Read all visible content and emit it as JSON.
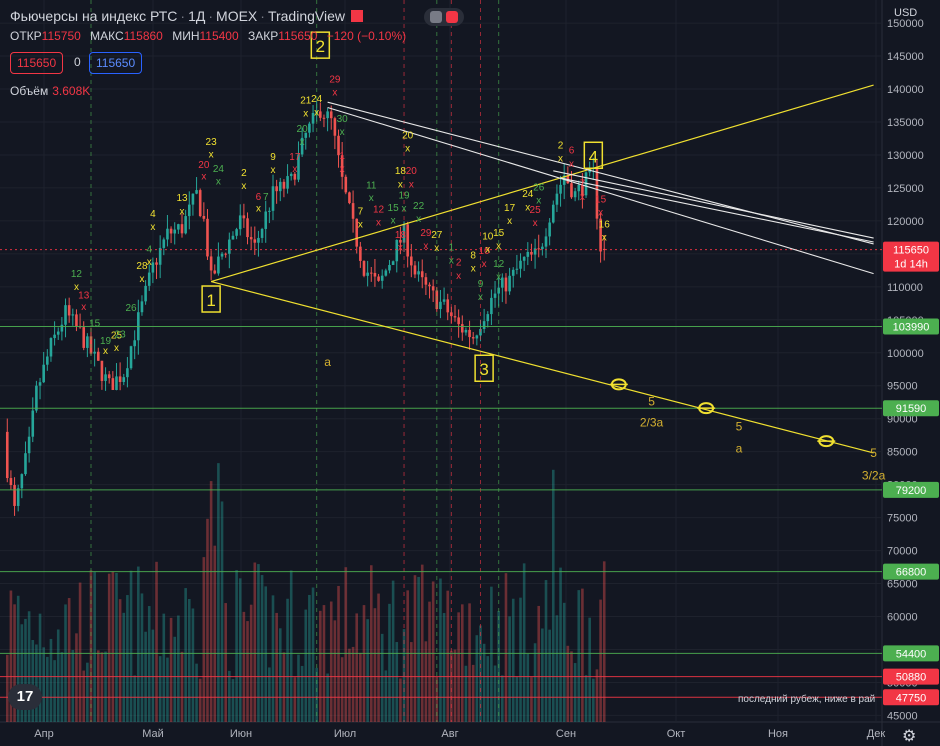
{
  "header": {
    "title": "Фьючерсы на индекс РТС",
    "interval": "1Д",
    "exchange": "MOEX",
    "brand": "TradingView"
  },
  "ohlc": {
    "open_label": "ОТКР",
    "open": "115750",
    "high_label": "МАКС",
    "high": "115860",
    "low_label": "МИН",
    "low": "115400",
    "close_label": "ЗАКР",
    "close": "115650",
    "change": "−120 (−0.10%)"
  },
  "trade": {
    "sell_price": "115650",
    "quantity": "0",
    "buy_price": "115650"
  },
  "volume": {
    "label": "Объём",
    "value": "3.608K"
  },
  "currency": "USD",
  "note": "последний рубеж, ниже в рай",
  "colors": {
    "bg": "#131722",
    "up": "#26a69a",
    "down": "#ef5350",
    "wave": "#f0e030",
    "green_level": "#4caf50",
    "red_level": "#f23645"
  },
  "chart_data": {
    "type": "candlestick",
    "y_axis": {
      "ticks": [
        150000,
        145000,
        140000,
        135000,
        130000,
        125000,
        120000,
        115000,
        110000,
        105000,
        100000,
        95000,
        90000,
        85000,
        80000,
        75000,
        70000,
        65000,
        60000,
        55000,
        50000,
        45000
      ],
      "range": [
        44000,
        153500
      ]
    },
    "x_axis": {
      "labels": [
        "Апр",
        "Май",
        "Июн",
        "Июл",
        "Авг",
        "Сен",
        "Окт",
        "Ноя",
        "Дек"
      ]
    },
    "price_labels": [
      {
        "value": 115650,
        "text": "115650",
        "sub": "1d 14h",
        "color": "#f23645"
      },
      {
        "value": 103990,
        "text": "103990",
        "color": "#4caf50"
      },
      {
        "value": 91590,
        "text": "91590",
        "color": "#4caf50"
      },
      {
        "value": 79200,
        "text": "79200",
        "color": "#4caf50"
      },
      {
        "value": 66800,
        "text": "66800",
        "color": "#4caf50"
      },
      {
        "value": 54400,
        "text": "54400",
        "color": "#4caf50"
      },
      {
        "value": 50880,
        "text": "50880",
        "color": "#f23645"
      },
      {
        "value": 47750,
        "text": "47750",
        "color": "#f23645"
      }
    ],
    "wave_labels": [
      {
        "text": "1",
        "day": 58,
        "price": 108000
      },
      {
        "text": "2",
        "day": 88,
        "price": 146500
      },
      {
        "text": "3",
        "day": 133,
        "price": 97500
      },
      {
        "text": "4",
        "day": 163,
        "price": 129800
      }
    ],
    "annotations": [
      {
        "text": "a",
        "day": 90,
        "price": 98000
      },
      {
        "text": "5",
        "day": 179,
        "price": 92000
      },
      {
        "text": "2/3a",
        "day": 179,
        "price": 88800
      },
      {
        "text": "5",
        "day": 203,
        "price": 88200
      },
      {
        "text": "a",
        "day": 203,
        "price": 84900
      },
      {
        "text": "5",
        "day": 240,
        "price": 84200
      },
      {
        "text": "3/2a",
        "day": 240,
        "price": 80800
      }
    ],
    "td_counts": [
      {
        "t": "12",
        "d": 21,
        "p": 111500,
        "c": "g"
      },
      {
        "t": "x",
        "d": 21,
        "p": 109500,
        "c": "y"
      },
      {
        "t": "13",
        "d": 23,
        "p": 108200,
        "c": "r"
      },
      {
        "t": "x",
        "d": 23,
        "p": 106500,
        "c": "r"
      },
      {
        "t": "15",
        "d": 26,
        "p": 104000,
        "c": "g"
      },
      {
        "t": "19",
        "d": 29,
        "p": 101300,
        "c": "g"
      },
      {
        "t": "x",
        "d": 29,
        "p": 99800,
        "c": "y"
      },
      {
        "t": "25",
        "d": 32,
        "p": 102200,
        "c": "y"
      },
      {
        "t": "23",
        "d": 33,
        "p": 102300,
        "c": "g"
      },
      {
        "t": "x",
        "d": 32,
        "p": 100300,
        "c": "y"
      },
      {
        "t": "26",
        "d": 36,
        "p": 106300,
        "c": "g"
      },
      {
        "t": "28",
        "d": 39,
        "p": 112700,
        "c": "y"
      },
      {
        "t": "x",
        "d": 39,
        "p": 110700,
        "c": "y"
      },
      {
        "t": "4",
        "d": 41,
        "p": 115200,
        "c": "g"
      },
      {
        "t": "x",
        "d": 41,
        "p": 113300,
        "c": "y"
      },
      {
        "t": "4",
        "d": 42,
        "p": 120600,
        "c": "y"
      },
      {
        "t": "x",
        "d": 42,
        "p": 118600,
        "c": "y"
      },
      {
        "t": "13",
        "d": 50,
        "p": 123000,
        "c": "y"
      },
      {
        "t": "x",
        "d": 50,
        "p": 121000,
        "c": "y"
      },
      {
        "t": "23",
        "d": 58,
        "p": 131500,
        "c": "y"
      },
      {
        "t": "x",
        "d": 58,
        "p": 129600,
        "c": "y"
      },
      {
        "t": "20",
        "d": 56,
        "p": 128000,
        "c": "r"
      },
      {
        "t": "x",
        "d": 56,
        "p": 126300,
        "c": "r"
      },
      {
        "t": "24",
        "d": 60,
        "p": 127400,
        "c": "g"
      },
      {
        "t": "x",
        "d": 60,
        "p": 125500,
        "c": "g"
      },
      {
        "t": "2",
        "d": 67,
        "p": 126800,
        "c": "y"
      },
      {
        "t": "x",
        "d": 67,
        "p": 124800,
        "c": "y"
      },
      {
        "t": "6",
        "d": 71,
        "p": 123200,
        "c": "r"
      },
      {
        "t": "7",
        "d": 73,
        "p": 123200,
        "c": "g"
      },
      {
        "t": "x",
        "d": 71,
        "p": 121400,
        "c": "y"
      },
      {
        "t": "9",
        "d": 75,
        "p": 129200,
        "c": "y"
      },
      {
        "t": "x",
        "d": 75,
        "p": 127300,
        "c": "y"
      },
      {
        "t": "17",
        "d": 81,
        "p": 129200,
        "c": "r"
      },
      {
        "t": "x",
        "d": 81,
        "p": 127400,
        "c": "r"
      },
      {
        "t": "20",
        "d": 83,
        "p": 133500,
        "c": "g"
      },
      {
        "t": "x",
        "d": 83,
        "p": 131500,
        "c": "g"
      },
      {
        "t": "21",
        "d": 84,
        "p": 137800,
        "c": "y"
      },
      {
        "t": "x",
        "d": 84,
        "p": 135800,
        "c": "y"
      },
      {
        "t": "24",
        "d": 87,
        "p": 138000,
        "c": "y"
      },
      {
        "t": "x",
        "d": 87,
        "p": 136000,
        "c": "y"
      },
      {
        "t": "29",
        "d": 92,
        "p": 141000,
        "c": "r"
      },
      {
        "t": "x",
        "d": 92,
        "p": 139000,
        "c": "r"
      },
      {
        "t": "30",
        "d": 94,
        "p": 135000,
        "c": "g"
      },
      {
        "t": "x",
        "d": 94,
        "p": 133000,
        "c": "g"
      },
      {
        "t": "1",
        "d": 94,
        "p": 129400,
        "c": "r"
      },
      {
        "t": "x",
        "d": 94,
        "p": 127400,
        "c": "r"
      },
      {
        "t": "7",
        "d": 99,
        "p": 121000,
        "c": "y"
      },
      {
        "t": "x",
        "d": 99,
        "p": 119000,
        "c": "y"
      },
      {
        "t": "11",
        "d": 102,
        "p": 124900,
        "c": "g"
      },
      {
        "t": "x",
        "d": 102,
        "p": 123000,
        "c": "g"
      },
      {
        "t": "12",
        "d": 104,
        "p": 121300,
        "c": "r"
      },
      {
        "t": "x",
        "d": 104,
        "p": 119300,
        "c": "r"
      },
      {
        "t": "15",
        "d": 108,
        "p": 121500,
        "c": "g"
      },
      {
        "t": "x",
        "d": 108,
        "p": 119600,
        "c": "g"
      },
      {
        "t": "19",
        "d": 111,
        "p": 123400,
        "c": "g"
      },
      {
        "t": "x",
        "d": 111,
        "p": 121400,
        "c": "g"
      },
      {
        "t": "18",
        "d": 110,
        "p": 117400,
        "c": "r"
      },
      {
        "t": "x",
        "d": 110,
        "p": 115500,
        "c": "r"
      },
      {
        "t": "18",
        "d": 110,
        "p": 127100,
        "c": "y"
      },
      {
        "t": "x",
        "d": 110,
        "p": 125100,
        "c": "y"
      },
      {
        "t": "20",
        "d": 112,
        "p": 132500,
        "c": "y"
      },
      {
        "t": "x",
        "d": 112,
        "p": 130500,
        "c": "y"
      },
      {
        "t": "20",
        "d": 113,
        "p": 127100,
        "c": "r"
      },
      {
        "t": "x",
        "d": 113,
        "p": 125100,
        "c": "r"
      },
      {
        "t": "22",
        "d": 115,
        "p": 121800,
        "c": "g"
      },
      {
        "t": "x",
        "d": 115,
        "p": 119800,
        "c": "g"
      },
      {
        "t": "29",
        "d": 117,
        "p": 117700,
        "c": "r"
      },
      {
        "t": "x",
        "d": 117,
        "p": 115700,
        "c": "r"
      },
      {
        "t": "27",
        "d": 120,
        "p": 117400,
        "c": "y"
      },
      {
        "t": "x",
        "d": 120,
        "p": 115400,
        "c": "y"
      },
      {
        "t": "1",
        "d": 124,
        "p": 115500,
        "c": "g"
      },
      {
        "t": "x",
        "d": 124,
        "p": 113500,
        "c": "g"
      },
      {
        "t": "2",
        "d": 126,
        "p": 113200,
        "c": "r"
      },
      {
        "t": "x",
        "d": 126,
        "p": 111200,
        "c": "r"
      },
      {
        "t": "8",
        "d": 130,
        "p": 114300,
        "c": "y"
      },
      {
        "t": "x",
        "d": 130,
        "p": 112300,
        "c": "y"
      },
      {
        "t": "9",
        "d": 132,
        "p": 110000,
        "c": "g"
      },
      {
        "t": "x",
        "d": 132,
        "p": 108000,
        "c": "g"
      },
      {
        "t": "10",
        "d": 133,
        "p": 115000,
        "c": "r"
      },
      {
        "t": "x",
        "d": 133,
        "p": 113000,
        "c": "r"
      },
      {
        "t": "10",
        "d": 134,
        "p": 117200,
        "c": "y"
      },
      {
        "t": "x",
        "d": 134,
        "p": 115200,
        "c": "y"
      },
      {
        "t": "12",
        "d": 137,
        "p": 113000,
        "c": "g"
      },
      {
        "t": "x",
        "d": 137,
        "p": 111000,
        "c": "g"
      },
      {
        "t": "15",
        "d": 137,
        "p": 117700,
        "c": "y"
      },
      {
        "t": "x",
        "d": 137,
        "p": 115700,
        "c": "y"
      },
      {
        "t": "17",
        "d": 140,
        "p": 121500,
        "c": "y"
      },
      {
        "t": "x",
        "d": 140,
        "p": 119500,
        "c": "y"
      },
      {
        "t": "24",
        "d": 145,
        "p": 123600,
        "c": "y"
      },
      {
        "t": "x",
        "d": 145,
        "p": 121600,
        "c": "y"
      },
      {
        "t": "25",
        "d": 147,
        "p": 121200,
        "c": "r"
      },
      {
        "t": "x",
        "d": 147,
        "p": 119200,
        "c": "r"
      },
      {
        "t": "26",
        "d": 148,
        "p": 124600,
        "c": "g"
      },
      {
        "t": "x",
        "d": 148,
        "p": 122600,
        "c": "g"
      },
      {
        "t": "2",
        "d": 154,
        "p": 131000,
        "c": "y"
      },
      {
        "t": "x",
        "d": 154,
        "p": 129000,
        "c": "y"
      },
      {
        "t": "6",
        "d": 157,
        "p": 130200,
        "c": "r"
      },
      {
        "t": "x",
        "d": 157,
        "p": 128200,
        "c": "r"
      },
      {
        "t": "7",
        "d": 160,
        "p": 125200,
        "c": "r"
      },
      {
        "t": "x",
        "d": 160,
        "p": 123200,
        "c": "r"
      },
      {
        "t": "15",
        "d": 165,
        "p": 122800,
        "c": "r"
      },
      {
        "t": "x",
        "d": 165,
        "p": 120800,
        "c": "r"
      },
      {
        "t": "16",
        "d": 166,
        "p": 119000,
        "c": "y"
      },
      {
        "t": "x",
        "d": 166,
        "p": 117000,
        "c": "y"
      }
    ],
    "yellow_lines": [
      {
        "from": [
          58,
          110800
        ],
        "to": [
          240,
          84800
        ]
      },
      {
        "from": [
          58,
          110800
        ],
        "to": [
          240,
          140600
        ]
      }
    ],
    "white_lines": [
      {
        "from": [
          90,
          138000
        ],
        "to": [
          240,
          116500
        ]
      },
      {
        "from": [
          90,
          137200
        ],
        "to": [
          240,
          112000
        ]
      },
      {
        "from": [
          152,
          127600
        ],
        "to": [
          240,
          117400
        ]
      },
      {
        "from": [
          154,
          126500
        ],
        "to": [
          240,
          116800
        ]
      }
    ],
    "vertical_lines": [
      {
        "day": 25,
        "color": "g"
      },
      {
        "day": 87,
        "color": "g"
      },
      {
        "day": 111,
        "color": "r"
      },
      {
        "day": 120,
        "color": "g"
      },
      {
        "day": 124,
        "color": "r"
      },
      {
        "day": 132,
        "color": "r"
      },
      {
        "day": 137,
        "color": "g"
      }
    ],
    "circles": [
      {
        "day": 170,
        "price": 95200
      },
      {
        "day": 194,
        "price": 91600
      },
      {
        "day": 227,
        "price": 86600
      }
    ],
    "candles_ohlc_anchor": {
      "last_open": 115750,
      "last_high": 115860,
      "last_low": 115400,
      "last_close": 115650
    }
  }
}
